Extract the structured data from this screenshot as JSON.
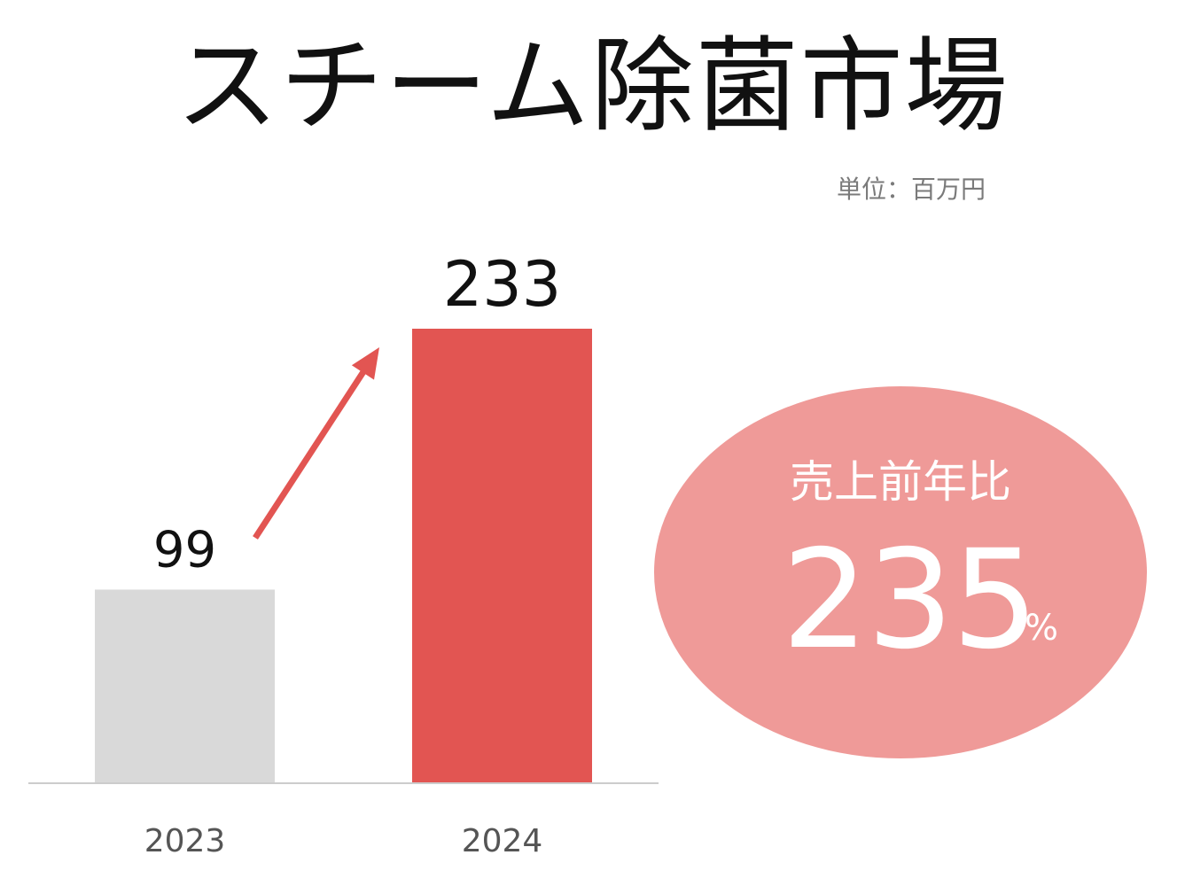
{
  "title": "スチーム除菌市場",
  "unit_label": "単位：百万円",
  "chart_data": {
    "type": "bar",
    "categories": [
      "2023",
      "2024"
    ],
    "values": [
      99,
      233
    ],
    "value_labels": [
      "99",
      "233"
    ],
    "colors": [
      "#d9d9d9",
      "#e25552"
    ],
    "ylim": [
      0,
      233
    ],
    "xlabel": "",
    "ylabel": ""
  },
  "callout": {
    "label": "売上前年比",
    "value": "235",
    "unit": "%",
    "color": "#ef9a98"
  },
  "arrow": {
    "color": "#e25552"
  }
}
